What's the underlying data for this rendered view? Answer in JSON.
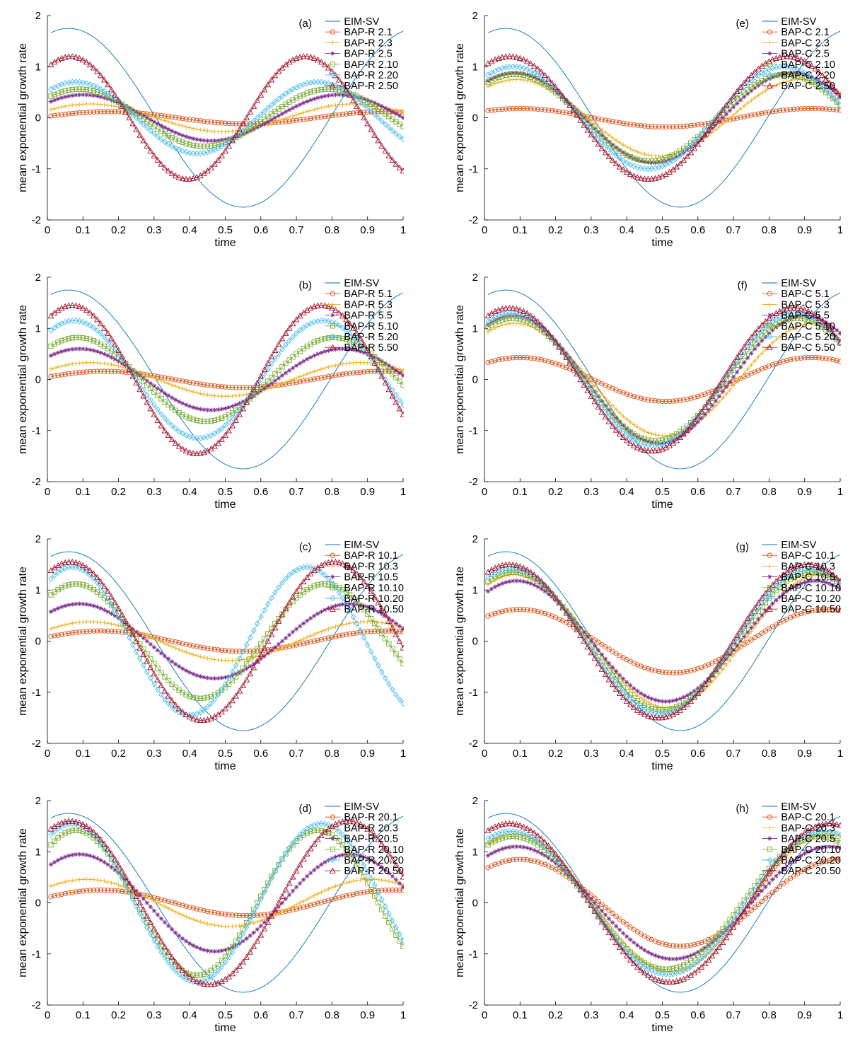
{
  "colors": {
    "EIM-SV": "#0072BD",
    "s1": "#D95319",
    "s3": "#EDB120",
    "s5": "#7E2F8E",
    "s10": "#77AC30",
    "s20": "#4DBEEE",
    "s50": "#A2142F"
  },
  "chart_data": [
    {
      "type": "line",
      "panel": "(a)",
      "xlabel": "time",
      "ylabel": "mean exponential growth rate",
      "xlim": [
        0,
        1
      ],
      "ylim": [
        -2,
        2
      ],
      "xticks": [
        "0",
        "0.1",
        "0.2",
        "0.3",
        "0.4",
        "0.5",
        "0.6",
        "0.7",
        "0.8",
        "0.9",
        "1"
      ],
      "yticks": [
        "-2",
        "-1",
        "0",
        "1",
        "2"
      ],
      "series": [
        {
          "name": "EIM-SV",
          "key": "EIM-SV",
          "marker": "none",
          "amplitude": 1.75,
          "peak_x": 0.06,
          "period": 0.98
        },
        {
          "name": "BAP-R 2.1",
          "key": "s1",
          "marker": "circle",
          "amplitude": 0.12,
          "peak_x": 0.17,
          "period": 0.78
        },
        {
          "name": "BAP-R 2.3",
          "key": "s3",
          "marker": "plus",
          "amplitude": 0.27,
          "peak_x": 0.12,
          "period": 0.74
        },
        {
          "name": "BAP-R 2.5",
          "key": "s5",
          "marker": "star",
          "amplitude": 0.45,
          "peak_x": 0.1,
          "period": 0.72
        },
        {
          "name": "BAP-R 2.10",
          "key": "s10",
          "marker": "square",
          "amplitude": 0.56,
          "peak_x": 0.09,
          "period": 0.7
        },
        {
          "name": "BAP-R 2.20",
          "key": "s20",
          "marker": "diamond",
          "amplitude": 0.7,
          "peak_x": 0.08,
          "period": 0.68
        },
        {
          "name": "BAP-R 2.50",
          "key": "s50",
          "marker": "triangle",
          "amplitude": 1.2,
          "peak_x": 0.065,
          "period": 0.66
        }
      ]
    },
    {
      "type": "line",
      "panel": "(b)",
      "xlabel": "time",
      "ylabel": "mean exponential growth rate",
      "xlim": [
        0,
        1
      ],
      "ylim": [
        -2,
        2
      ],
      "xticks": [
        "0",
        "0.1",
        "0.2",
        "0.3",
        "0.4",
        "0.5",
        "0.6",
        "0.7",
        "0.8",
        "0.9",
        "1"
      ],
      "yticks": [
        "-2",
        "-1",
        "0",
        "1",
        "2"
      ],
      "series": [
        {
          "name": "EIM-SV",
          "key": "EIM-SV",
          "marker": "none",
          "amplitude": 1.75,
          "peak_x": 0.06,
          "period": 0.98
        },
        {
          "name": "BAP-R 5.1",
          "key": "s1",
          "marker": "circle",
          "amplitude": 0.16,
          "peak_x": 0.16,
          "period": 0.78
        },
        {
          "name": "BAP-R 5.3",
          "key": "s3",
          "marker": "plus",
          "amplitude": 0.33,
          "peak_x": 0.12,
          "period": 0.76
        },
        {
          "name": "BAP-R 5.5",
          "key": "s5",
          "marker": "star",
          "amplitude": 0.6,
          "peak_x": 0.09,
          "period": 0.74
        },
        {
          "name": "BAP-R 5.10",
          "key": "s10",
          "marker": "square",
          "amplitude": 0.82,
          "peak_x": 0.085,
          "period": 0.72
        },
        {
          "name": "BAP-R 5.20",
          "key": "s20",
          "marker": "diamond",
          "amplitude": 1.15,
          "peak_x": 0.075,
          "period": 0.7
        },
        {
          "name": "BAP-R 5.50",
          "key": "s50",
          "marker": "triangle",
          "amplitude": 1.45,
          "peak_x": 0.07,
          "period": 0.7
        }
      ]
    },
    {
      "type": "line",
      "panel": "(c)",
      "xlabel": "time",
      "ylabel": "mean exponential growth rate",
      "xlim": [
        0,
        1
      ],
      "ylim": [
        -2,
        2
      ],
      "xticks": [
        "0",
        "0.1",
        "0.2",
        "0.3",
        "0.4",
        "0.5",
        "0.6",
        "0.7",
        "0.8",
        "0.9",
        "1"
      ],
      "yticks": [
        "-2",
        "-1",
        "0",
        "1",
        "2"
      ],
      "series": [
        {
          "name": "EIM-SV",
          "key": "EIM-SV",
          "marker": "none",
          "amplitude": 1.75,
          "peak_x": 0.06,
          "period": 0.98
        },
        {
          "name": "BAP-R 10.1",
          "key": "s1",
          "marker": "circle",
          "amplitude": 0.2,
          "peak_x": 0.15,
          "period": 0.8
        },
        {
          "name": "BAP-R 10.3",
          "key": "s3",
          "marker": "plus",
          "amplitude": 0.38,
          "peak_x": 0.12,
          "period": 0.78
        },
        {
          "name": "BAP-R 10.5",
          "key": "s5",
          "marker": "star",
          "amplitude": 0.73,
          "peak_x": 0.09,
          "period": 0.76
        },
        {
          "name": "BAP-R 10.10",
          "key": "s10",
          "marker": "square",
          "amplitude": 1.12,
          "peak_x": 0.08,
          "period": 0.7
        },
        {
          "name": "BAP-R 10.20",
          "key": "s20",
          "marker": "diamond",
          "amplitude": 1.45,
          "peak_x": 0.07,
          "period": 0.66
        },
        {
          "name": "BAP-R 10.50",
          "key": "s50",
          "marker": "triangle",
          "amplitude": 1.55,
          "peak_x": 0.065,
          "period": 0.74
        }
      ]
    },
    {
      "type": "line",
      "panel": "(d)",
      "xlabel": "time",
      "ylabel": "mean exponential growth rate",
      "xlim": [
        0,
        1
      ],
      "ylim": [
        -2,
        2
      ],
      "xticks": [
        "0",
        "0.1",
        "0.2",
        "0.3",
        "0.4",
        "0.5",
        "0.6",
        "0.7",
        "0.8",
        "0.9",
        "1"
      ],
      "yticks": [
        "-2",
        "-1",
        "0",
        "1",
        "2"
      ],
      "series": [
        {
          "name": "EIM-SV",
          "key": "EIM-SV",
          "marker": "none",
          "amplitude": 1.75,
          "peak_x": 0.06,
          "period": 0.98
        },
        {
          "name": "BAP-R 20.1",
          "key": "s1",
          "marker": "circle",
          "amplitude": 0.25,
          "peak_x": 0.15,
          "period": 0.82
        },
        {
          "name": "BAP-R 20.3",
          "key": "s3",
          "marker": "plus",
          "amplitude": 0.46,
          "peak_x": 0.11,
          "period": 0.8
        },
        {
          "name": "BAP-R 20.5",
          "key": "s5",
          "marker": "star",
          "amplitude": 0.95,
          "peak_x": 0.09,
          "period": 0.76
        },
        {
          "name": "BAP-R 20.10",
          "key": "s10",
          "marker": "square",
          "amplitude": 1.42,
          "peak_x": 0.08,
          "period": 0.68
        },
        {
          "name": "BAP-R 20.20",
          "key": "s20",
          "marker": "diamond",
          "amplitude": 1.55,
          "peak_x": 0.07,
          "period": 0.7
        },
        {
          "name": "BAP-R 20.50",
          "key": "s50",
          "marker": "triangle",
          "amplitude": 1.6,
          "peak_x": 0.065,
          "period": 0.78
        }
      ]
    },
    {
      "type": "line",
      "panel": "(e)",
      "xlabel": "time",
      "ylabel": "mean exponential growth rate",
      "xlim": [
        0,
        1
      ],
      "ylim": [
        -2,
        2
      ],
      "xticks": [
        "0",
        "0.1",
        "0.2",
        "0.3",
        "0.4",
        "0.5",
        "0.6",
        "0.7",
        "0.8",
        "0.9",
        "1"
      ],
      "yticks": [
        "-2",
        "-1",
        "0",
        "1",
        "2"
      ],
      "series": [
        {
          "name": "EIM-SV",
          "key": "EIM-SV",
          "marker": "none",
          "amplitude": 1.75,
          "peak_x": 0.06,
          "period": 0.98
        },
        {
          "name": "BAP-C 2.1",
          "key": "s1",
          "marker": "circle",
          "amplitude": 0.18,
          "peak_x": 0.1,
          "period": 0.82
        },
        {
          "name": "BAP-C 2.3",
          "key": "s3",
          "marker": "plus",
          "amplitude": 0.75,
          "peak_x": 0.09,
          "period": 0.8
        },
        {
          "name": "BAP-C 2.5",
          "key": "s5",
          "marker": "star",
          "amplitude": 0.88,
          "peak_x": 0.085,
          "period": 0.78
        },
        {
          "name": "BAP-C 2.10",
          "key": "s10",
          "marker": "square",
          "amplitude": 0.85,
          "peak_x": 0.085,
          "period": 0.76
        },
        {
          "name": "BAP-C 2.20",
          "key": "s20",
          "marker": "diamond",
          "amplitude": 1.0,
          "peak_x": 0.08,
          "period": 0.76
        },
        {
          "name": "BAP-C 2.50",
          "key": "s50",
          "marker": "triangle",
          "amplitude": 1.2,
          "peak_x": 0.07,
          "period": 0.78
        }
      ]
    },
    {
      "type": "line",
      "panel": "(f)",
      "xlabel": "time",
      "ylabel": "mean exponential growth rate",
      "xlim": [
        0,
        1
      ],
      "ylim": [
        -2,
        2
      ],
      "xticks": [
        "0",
        "0.1",
        "0.2",
        "0.3",
        "0.4",
        "0.5",
        "0.6",
        "0.7",
        "0.8",
        "0.9",
        "1"
      ],
      "yticks": [
        "-2",
        "-1",
        "0",
        "1",
        "2"
      ],
      "series": [
        {
          "name": "EIM-SV",
          "key": "EIM-SV",
          "marker": "none",
          "amplitude": 1.75,
          "peak_x": 0.06,
          "period": 0.98
        },
        {
          "name": "BAP-C 5.1",
          "key": "s1",
          "marker": "circle",
          "amplitude": 0.43,
          "peak_x": 0.1,
          "period": 0.82
        },
        {
          "name": "BAP-C 5.3",
          "key": "s3",
          "marker": "plus",
          "amplitude": 1.1,
          "peak_x": 0.085,
          "period": 0.84
        },
        {
          "name": "BAP-C 5.5",
          "key": "s5",
          "marker": "star",
          "amplitude": 1.25,
          "peak_x": 0.08,
          "period": 0.82
        },
        {
          "name": "BAP-C 5.10",
          "key": "s10",
          "marker": "square",
          "amplitude": 1.2,
          "peak_x": 0.08,
          "period": 0.8
        },
        {
          "name": "BAP-C 5.20",
          "key": "s20",
          "marker": "diamond",
          "amplitude": 1.3,
          "peak_x": 0.075,
          "period": 0.8
        },
        {
          "name": "BAP-C 5.50",
          "key": "s50",
          "marker": "triangle",
          "amplitude": 1.4,
          "peak_x": 0.07,
          "period": 0.8
        }
      ]
    },
    {
      "type": "line",
      "panel": "(g)",
      "xlabel": "time",
      "ylabel": "mean exponential growth rate",
      "xlim": [
        0,
        1
      ],
      "ylim": [
        -2,
        2
      ],
      "xticks": [
        "0",
        "0.1",
        "0.2",
        "0.3",
        "0.4",
        "0.5",
        "0.6",
        "0.7",
        "0.8",
        "0.9",
        "1"
      ],
      "yticks": [
        "-2",
        "-1",
        "0",
        "1",
        "2"
      ],
      "series": [
        {
          "name": "EIM-SV",
          "key": "EIM-SV",
          "marker": "none",
          "amplitude": 1.75,
          "peak_x": 0.06,
          "period": 0.98
        },
        {
          "name": "BAP-C 10.1",
          "key": "s1",
          "marker": "circle",
          "amplitude": 0.62,
          "peak_x": 0.1,
          "period": 0.86
        },
        {
          "name": "BAP-C 10.3",
          "key": "s3",
          "marker": "plus",
          "amplitude": 1.3,
          "peak_x": 0.085,
          "period": 0.86
        },
        {
          "name": "BAP-C 10.5",
          "key": "s5",
          "marker": "star",
          "amplitude": 1.18,
          "peak_x": 0.09,
          "period": 0.84
        },
        {
          "name": "BAP-C 10.10",
          "key": "s10",
          "marker": "square",
          "amplitude": 1.35,
          "peak_x": 0.08,
          "period": 0.84
        },
        {
          "name": "BAP-C 10.20",
          "key": "s20",
          "marker": "diamond",
          "amplitude": 1.42,
          "peak_x": 0.075,
          "period": 0.84
        },
        {
          "name": "BAP-C 10.50",
          "key": "s50",
          "marker": "triangle",
          "amplitude": 1.5,
          "peak_x": 0.07,
          "period": 0.84
        }
      ]
    },
    {
      "type": "line",
      "panel": "(h)",
      "xlabel": "time",
      "ylabel": "mean exponential growth rate",
      "xlim": [
        0,
        1
      ],
      "ylim": [
        -2,
        2
      ],
      "xticks": [
        "0",
        "0.1",
        "0.2",
        "0.3",
        "0.4",
        "0.5",
        "0.6",
        "0.7",
        "0.8",
        "0.9",
        "1"
      ],
      "yticks": [
        "-2",
        "-1",
        "0",
        "1",
        "2"
      ],
      "series": [
        {
          "name": "EIM-SV",
          "key": "EIM-SV",
          "marker": "none",
          "amplitude": 1.75,
          "peak_x": 0.06,
          "period": 0.98
        },
        {
          "name": "BAP-C 20.1",
          "key": "s1",
          "marker": "circle",
          "amplitude": 0.85,
          "peak_x": 0.1,
          "period": 0.9
        },
        {
          "name": "BAP-C 20.3",
          "key": "s3",
          "marker": "plus",
          "amplitude": 1.35,
          "peak_x": 0.085,
          "period": 0.88
        },
        {
          "name": "BAP-C 20.5",
          "key": "s5",
          "marker": "star",
          "amplitude": 1.1,
          "peak_x": 0.09,
          "period": 0.88
        },
        {
          "name": "BAP-C 20.10",
          "key": "s10",
          "marker": "square",
          "amplitude": 1.3,
          "peak_x": 0.08,
          "period": 0.86
        },
        {
          "name": "BAP-C 20.20",
          "key": "s20",
          "marker": "diamond",
          "amplitude": 1.4,
          "peak_x": 0.075,
          "period": 0.88
        },
        {
          "name": "BAP-C 20.50",
          "key": "s50",
          "marker": "triangle",
          "amplitude": 1.55,
          "peak_x": 0.07,
          "period": 0.9
        }
      ]
    }
  ]
}
